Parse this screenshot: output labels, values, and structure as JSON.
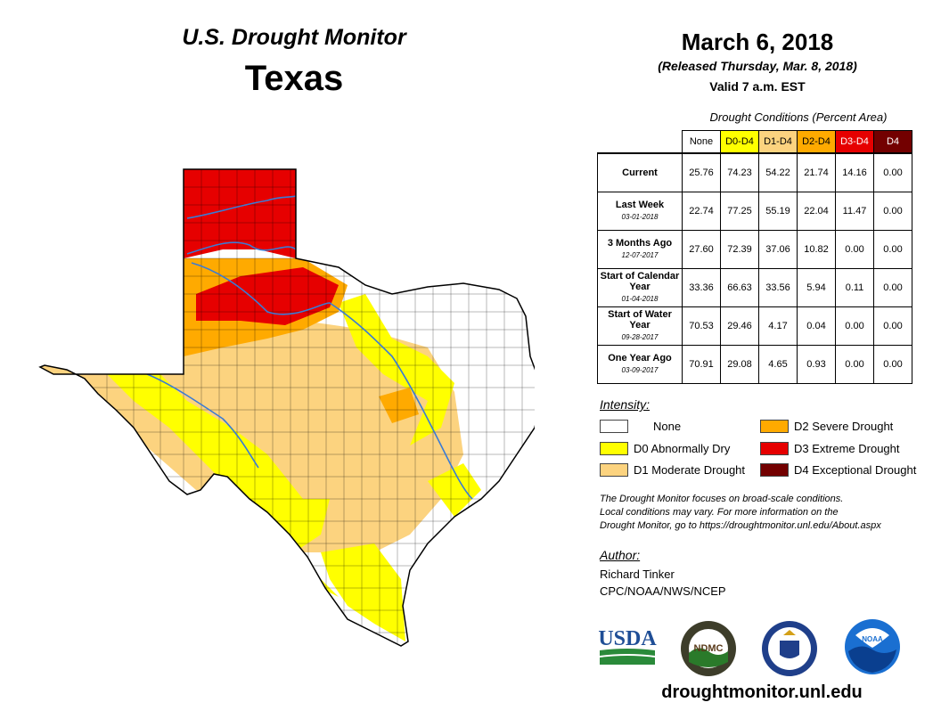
{
  "header": {
    "subtitle": "U.S. Drought Monitor",
    "state": "Texas",
    "date": "March 6, 2018",
    "released": "(Released Thursday, Mar. 8, 2018)",
    "valid": "Valid 7 a.m. EST"
  },
  "conditions": {
    "caption": "Drought Conditions (Percent Area)",
    "columns": [
      {
        "label": "None",
        "color": "#ffffff",
        "text_color": "#000000"
      },
      {
        "label": "D0-D4",
        "color": "#ffff00",
        "text_color": "#000000"
      },
      {
        "label": "D1-D4",
        "color": "#fcd37f",
        "text_color": "#000000"
      },
      {
        "label": "D2-D4",
        "color": "#ffaa00",
        "text_color": "#000000"
      },
      {
        "label": "D3-D4",
        "color": "#e60000",
        "text_color": "#ffffff"
      },
      {
        "label": "D4",
        "color": "#730000",
        "text_color": "#ffffff"
      }
    ],
    "rows": [
      {
        "label": "Current",
        "date": "",
        "values": [
          "25.76",
          "74.23",
          "54.22",
          "21.74",
          "14.16",
          "0.00"
        ]
      },
      {
        "label": "Last Week",
        "date": "03-01-2018",
        "values": [
          "22.74",
          "77.25",
          "55.19",
          "22.04",
          "11.47",
          "0.00"
        ]
      },
      {
        "label": "3 Months Ago",
        "date": "12-07-2017",
        "values": [
          "27.60",
          "72.39",
          "37.06",
          "10.82",
          "0.00",
          "0.00"
        ]
      },
      {
        "label": "Start of Calendar Year",
        "date": "01-04-2018",
        "values": [
          "33.36",
          "66.63",
          "33.56",
          "5.94",
          "0.11",
          "0.00"
        ]
      },
      {
        "label": "Start of Water Year",
        "date": "09-28-2017",
        "values": [
          "70.53",
          "29.46",
          "4.17",
          "0.04",
          "0.00",
          "0.00"
        ]
      },
      {
        "label": "One Year Ago",
        "date": "03-09-2017",
        "values": [
          "70.91",
          "29.08",
          "4.65",
          "0.93",
          "0.00",
          "0.00"
        ]
      }
    ]
  },
  "legend": {
    "title": "Intensity:",
    "items": [
      {
        "label": "None",
        "color": "#ffffff"
      },
      {
        "label": "D0 Abnormally Dry",
        "color": "#ffff00"
      },
      {
        "label": "D1 Moderate Drought",
        "color": "#fcd37f"
      },
      {
        "label": "D2 Severe Drought",
        "color": "#ffaa00"
      },
      {
        "label": "D3 Extreme Drought",
        "color": "#e60000"
      },
      {
        "label": "D4 Exceptional Drought",
        "color": "#730000"
      }
    ]
  },
  "note": {
    "line1": "The Drought Monitor focuses on broad-scale conditions.",
    "line2": "Local conditions may vary. For more information on the",
    "line3": "Drought Monitor, go to https://droughtmonitor.unl.edu/About.aspx"
  },
  "author": {
    "title": "Author:",
    "name": "Richard Tinker",
    "org": "CPC/NOAA/NWS/NCEP"
  },
  "logos": {
    "usda": "USDA",
    "ndmc": "NDMC",
    "noaa": "NOAA"
  },
  "website": "droughtmonitor.unl.edu"
}
